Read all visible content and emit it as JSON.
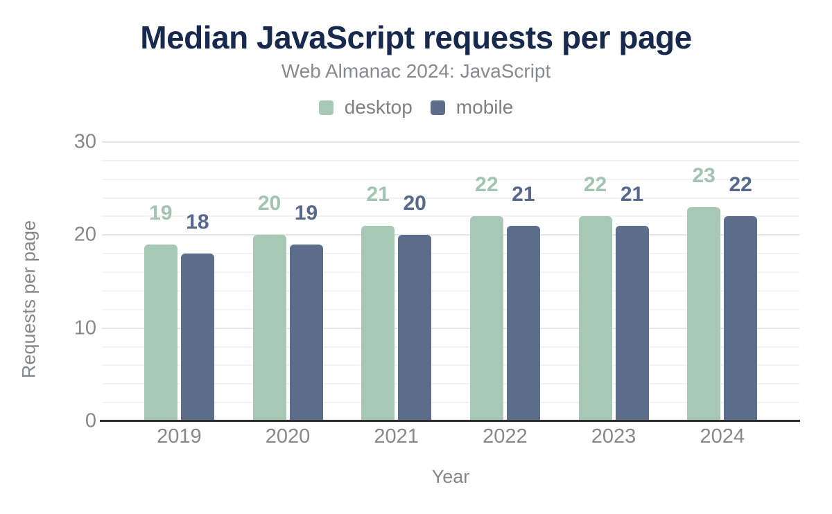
{
  "chart_data": {
    "type": "bar",
    "title": "Median JavaScript requests per page",
    "subtitle": "Web Almanac 2024: JavaScript",
    "categories": [
      "2019",
      "2020",
      "2021",
      "2022",
      "2023",
      "2024"
    ],
    "series": [
      {
        "name": "desktop",
        "color": "#a7c8b5",
        "label_color": "#a2c4b1",
        "values": [
          19,
          20,
          21,
          22,
          22,
          23
        ]
      },
      {
        "name": "mobile",
        "color": "#5d6e8d",
        "label_color": "#56688c",
        "values": [
          18,
          19,
          20,
          21,
          21,
          22
        ]
      }
    ],
    "xlabel": "Year",
    "ylabel": "Requests per page",
    "ylim": [
      0,
      30
    ],
    "yticks": [
      0,
      10,
      20,
      30
    ],
    "minor_grid_step": 2,
    "grid": true,
    "legend_position": "top-center"
  },
  "colors": {
    "background": "#ffffff",
    "title": "#17294d",
    "subtitle": "#888b8e",
    "axis_text": "#85888b",
    "axis_line": "#2d2d2d",
    "grid_minor": "#f3f3f3",
    "grid_major": "#e6e6e6"
  }
}
